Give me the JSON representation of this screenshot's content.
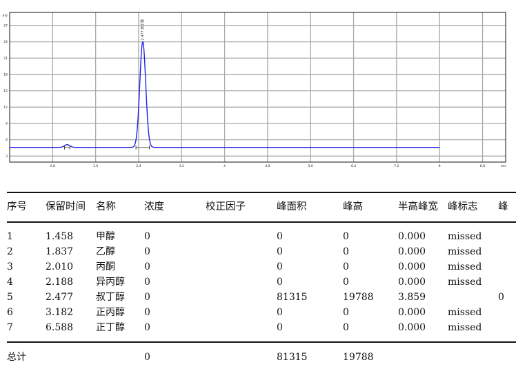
{
  "chart_data": {
    "type": "line",
    "xlabel": "min",
    "ylabel": "mV",
    "xlim": [
      0,
      9.23
    ],
    "ylim": [
      1.9,
      29.4
    ],
    "xticks": [
      0.8,
      1.6,
      2.4,
      3.2,
      4.0,
      4.8,
      5.6,
      6.4,
      7.2,
      8.0,
      8.8
    ],
    "xtick_labels": [
      "0.8",
      "1.6",
      "2.4",
      "3.2",
      "4",
      "4.8",
      "5.6",
      "6.4",
      "7.2",
      "8",
      "8.8"
    ],
    "yticks": [
      3,
      6,
      9,
      12,
      15,
      18,
      21,
      24,
      27
    ],
    "ytick_labels": [
      "3",
      "6",
      "9",
      "12",
      "15",
      "18",
      "21",
      "24",
      "27"
    ],
    "grid": true,
    "line_color": "#1f1fe6",
    "baseline": 4.6,
    "trace_end": 8.0,
    "peaks": [
      {
        "rt": 1.07,
        "height": 0.5,
        "width": 0.05,
        "label": ""
      },
      {
        "rt": 2.477,
        "height": 19.4,
        "width": 0.055,
        "label": "2.477 叔丁醇"
      }
    ],
    "peak_marks": [
      [
        1.02,
        1.12
      ],
      [
        2.35,
        2.6
      ]
    ]
  },
  "table": {
    "headers": [
      "序号",
      "保留时间",
      "名称",
      "浓度",
      "校正因子",
      "峰面积",
      "峰高",
      "半高峰宽",
      "峰标志",
      "峰"
    ],
    "rows": [
      [
        "1",
        "1.458",
        "甲醇",
        "0",
        "",
        "0",
        "0",
        "0.000",
        "missed",
        ""
      ],
      [
        "2",
        "1.837",
        "乙醇",
        "0",
        "",
        "0",
        "0",
        "0.000",
        "missed",
        ""
      ],
      [
        "3",
        "2.010",
        "丙酮",
        "0",
        "",
        "0",
        "0",
        "0.000",
        "missed",
        ""
      ],
      [
        "4",
        "2.188",
        "异丙醇",
        "0",
        "",
        "0",
        "0",
        "0.000",
        "missed",
        ""
      ],
      [
        "5",
        "2.477",
        "叔丁醇",
        "0",
        "",
        "81315",
        "19788",
        "3.859",
        "",
        "0"
      ],
      [
        "6",
        "3.182",
        "正丙醇",
        "0",
        "",
        "0",
        "0",
        "0.000",
        "missed",
        ""
      ],
      [
        "7",
        "6.588",
        "正丁醇",
        "0",
        "",
        "0",
        "0",
        "0.000",
        "missed",
        ""
      ]
    ],
    "total": {
      "label": "总计",
      "concentration": "0",
      "area": "81315",
      "height": "19788"
    }
  }
}
